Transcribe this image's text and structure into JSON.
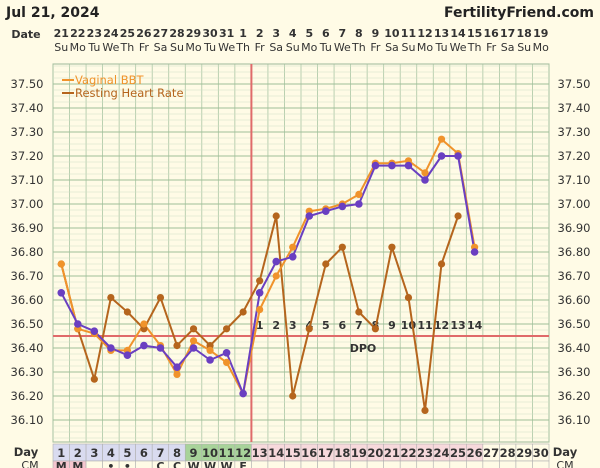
{
  "header": {
    "date": "Jul 21, 2024",
    "site": "FertilityFriend.com"
  },
  "labels": {
    "date_row": "Date",
    "day_row": "Day",
    "cm_row": "CM",
    "dpo": "DPO"
  },
  "chart_data": {
    "type": "line",
    "ylim": [
      36.0,
      37.6
    ],
    "yticks": [
      "37.50",
      "37.40",
      "37.30",
      "37.20",
      "37.10",
      "37.00",
      "36.90",
      "36.80",
      "36.70",
      "36.60",
      "36.50",
      "36.40",
      "36.30",
      "36.20",
      "36.10"
    ],
    "dates": [
      "21",
      "22",
      "23",
      "24",
      "25",
      "26",
      "27",
      "28",
      "29",
      "30",
      "31",
      "1",
      "2",
      "3",
      "4",
      "5",
      "6",
      "7",
      "8",
      "9",
      "10",
      "11",
      "12",
      "13",
      "14",
      "15",
      "16",
      "17",
      "18",
      "19"
    ],
    "weekdays": [
      "Su",
      "Mo",
      "Tu",
      "We",
      "Th",
      "Fr",
      "Sa",
      "Su",
      "Mo",
      "Tu",
      "We",
      "Th",
      "Fr",
      "Sa",
      "Su",
      "Mo",
      "Tu",
      "We",
      "Th",
      "Fr",
      "Sa",
      "Su",
      "Mo",
      "Tu",
      "We",
      "Th",
      "Fr",
      "Sa",
      "Su",
      "Mo"
    ],
    "cycle_days": [
      "1",
      "2",
      "3",
      "4",
      "5",
      "6",
      "7",
      "8",
      "9",
      "10",
      "11",
      "12",
      "13",
      "14",
      "15",
      "16",
      "17",
      "18",
      "19",
      "20",
      "21",
      "22",
      "23",
      "24",
      "25",
      "26",
      "27",
      "28",
      "29",
      "30"
    ],
    "cm": [
      "M",
      "M",
      "",
      "•",
      "•",
      "",
      "C",
      "C",
      "W",
      "W",
      "W",
      "E",
      "",
      "",
      "",
      "",
      "",
      "",
      "",
      "",
      "",
      "",
      "",
      "",
      "",
      "",
      "",
      "",
      "",
      ""
    ],
    "coverline": 36.45,
    "ovulation_day": 12,
    "dpo_numbers": [
      "1",
      "2",
      "3",
      "4",
      "5",
      "6",
      "7",
      "8",
      "9",
      "10",
      "11",
      "12",
      "13",
      "14"
    ],
    "legend": [
      "Vaginal BBT",
      "Resting Heart Rate"
    ],
    "legend_position": "top-left",
    "series": [
      {
        "name": "Vaginal BBT",
        "color": "#f0932b",
        "marker_color": "#6a3fc1",
        "values": [
          36.63,
          36.5,
          36.47,
          36.4,
          36.37,
          36.41,
          36.4,
          36.32,
          36.4,
          36.35,
          36.38,
          36.21,
          36.63,
          36.76,
          36.78,
          36.95,
          36.97,
          36.99,
          37.0,
          37.16,
          37.16,
          37.16,
          37.1,
          37.2,
          37.2,
          36.8,
          null,
          null,
          null,
          null
        ]
      },
      {
        "name": "Resting Heart Rate",
        "color": "#b5651d",
        "values": [
          36.75,
          36.48,
          36.27,
          36.61,
          36.55,
          36.48,
          36.61,
          36.41,
          36.48,
          36.41,
          36.48,
          36.55,
          36.68,
          36.95,
          36.2,
          36.48,
          36.75,
          36.82,
          36.55,
          36.48,
          36.82,
          36.61,
          36.14,
          36.75,
          36.95,
          null,
          null,
          null,
          null,
          null
        ]
      }
    ],
    "bbt_line_color": "#f0932b",
    "hr_line_color": "#b5651d",
    "bbt_points": [
      36.75,
      36.48,
      36.46,
      36.39,
      36.39,
      36.5,
      36.41,
      36.29,
      36.43,
      36.39,
      36.34,
      36.21,
      36.56,
      36.7,
      36.82,
      36.97,
      36.98,
      37.0,
      37.04,
      37.17,
      37.17,
      37.18,
      37.13,
      37.27,
      37.21,
      36.82,
      null,
      null,
      null,
      null
    ]
  }
}
